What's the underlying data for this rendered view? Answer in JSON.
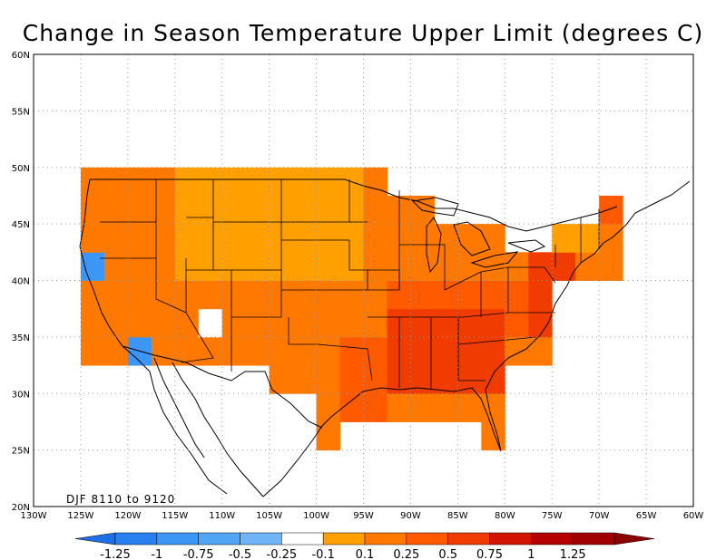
{
  "title": "Change in Season Temperature Upper Limit (degrees C)",
  "period_label": "DJF 8110 to 9120",
  "lat_labels": [
    "60N",
    "55N",
    "50N",
    "45N",
    "40N",
    "35N",
    "30N",
    "25N",
    "20N"
  ],
  "lon_labels": [
    "130W",
    "125W",
    "120W",
    "115W",
    "110W",
    "105W",
    "100W",
    "95W",
    "90W",
    "85W",
    "80W",
    "75W",
    "70W",
    "65W",
    "60W"
  ],
  "colorbar": {
    "labels": [
      "-1.25",
      "-1",
      "-0.75",
      "-0.5",
      "-0.25",
      "-0.1",
      "0.1",
      "0.25",
      "0.5",
      "0.75",
      "1",
      "1.25"
    ],
    "colors": [
      "#1e6ee6",
      "#2880f0",
      "#3c96f5",
      "#50a5f5",
      "#6eb4f7",
      "#ffffff",
      "#ffa000",
      "#ff7800",
      "#ff5a00",
      "#f03c00",
      "#d21400",
      "#b40000",
      "#a00000",
      "#8c0000"
    ]
  },
  "map_data": {
    "lon_range": [
      -130,
      -60
    ],
    "lat_range": [
      20,
      60
    ],
    "grid": "dotted",
    "cell_size_deg": [
      2.5,
      2.5
    ],
    "region_values": [
      {
        "region": "southeast",
        "value": 0.75
      },
      {
        "region": "gulf_coast",
        "value": 0.5
      },
      {
        "region": "northern_plains",
        "value": 0.25
      },
      {
        "region": "northeast",
        "value": 0.5
      },
      {
        "region": "southern_california",
        "value": -0.5
      },
      {
        "region": "northwest_coast",
        "value": -0.5
      }
    ]
  }
}
